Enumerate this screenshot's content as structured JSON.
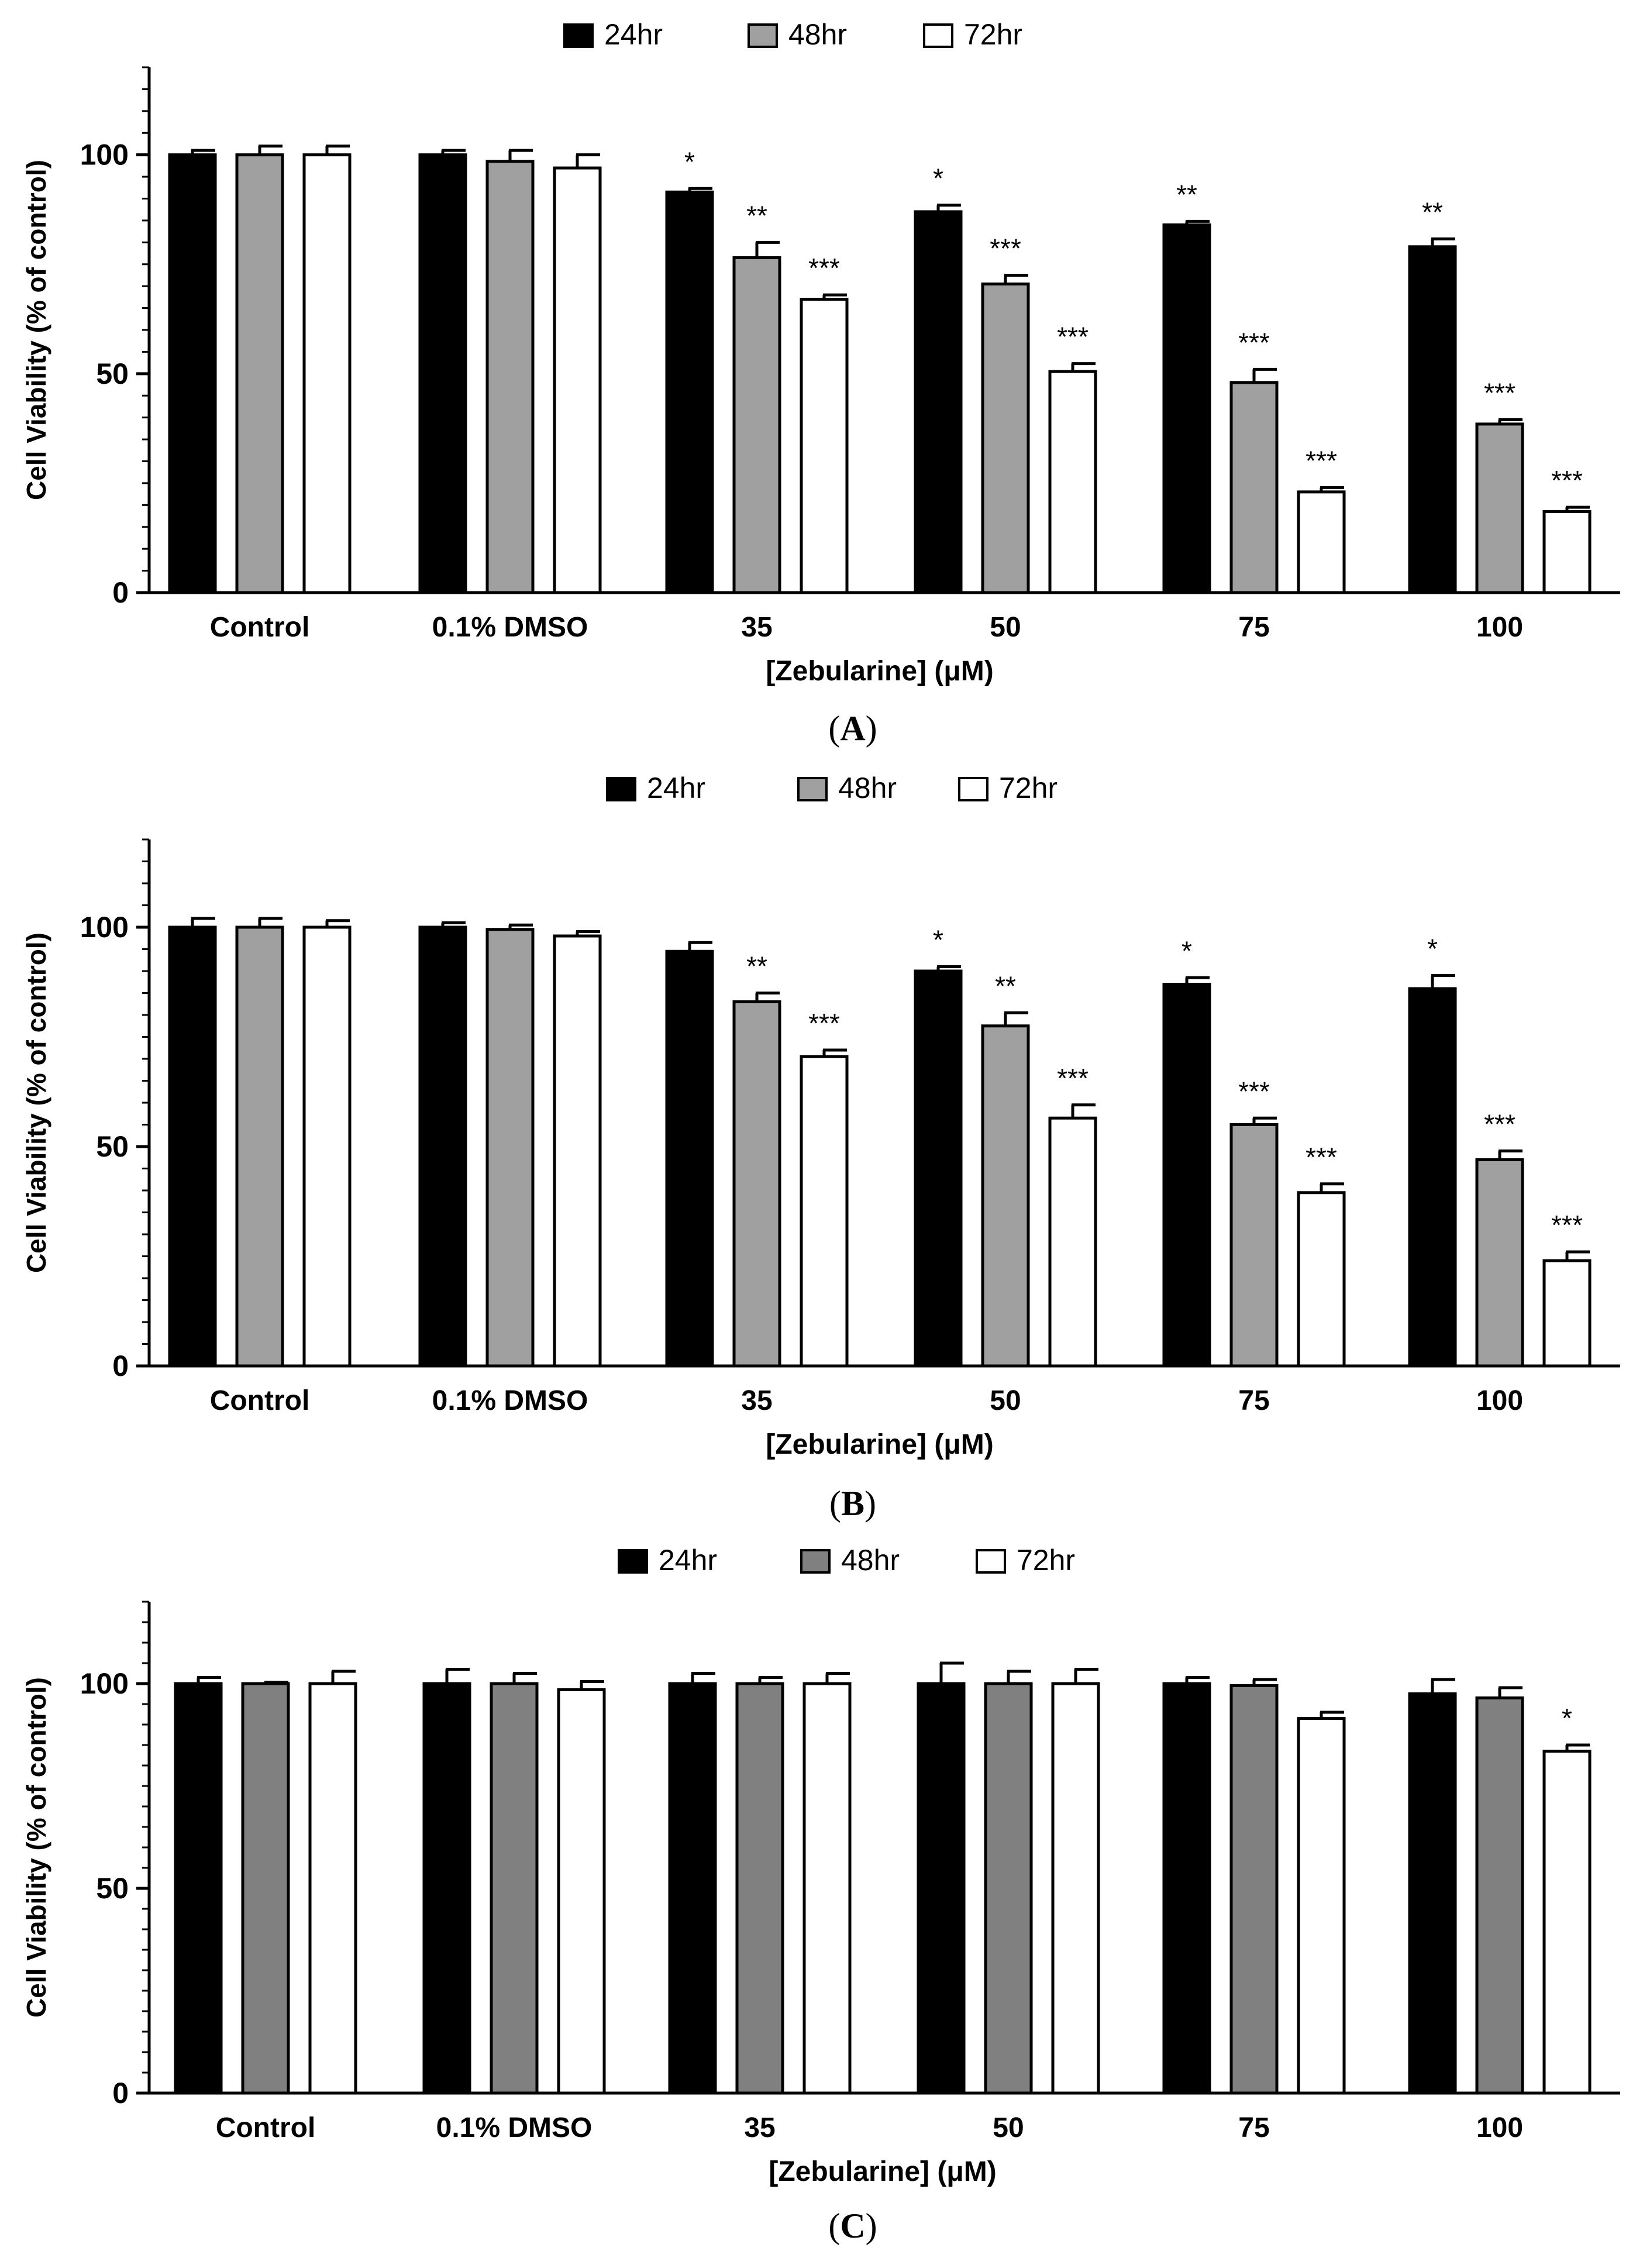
{
  "figure": {
    "panels": [
      "A",
      "B",
      "C"
    ]
  },
  "colors": {
    "series_24hr": "#000000",
    "series_48hr_A": "#a0a0a0",
    "series_48hr_B": "#a0a0a0",
    "series_48hr_C": "#808080",
    "series_72hr": "#ffffff",
    "axis": "#000000"
  },
  "chart_data": [
    {
      "type": "bar",
      "panel_caption": "A",
      "caption_prefix": "(",
      "caption_suffix": ")",
      "categories": [
        "Control",
        "0.1% DMSO",
        "35",
        "50",
        "75",
        "100"
      ],
      "series": [
        {
          "name": "24hr",
          "values": [
            100,
            100,
            91.5,
            87,
            84,
            79
          ],
          "errors": [
            1,
            1,
            0.8,
            1.5,
            0.8,
            1.8
          ],
          "significance": [
            "",
            "",
            "*",
            "*",
            "**",
            "**"
          ]
        },
        {
          "name": "48hr",
          "values": [
            100,
            98.5,
            76.5,
            70.5,
            48,
            38.5
          ],
          "errors": [
            2,
            2.5,
            3.5,
            2,
            3,
            1
          ],
          "significance": [
            "",
            "",
            "**",
            "***",
            "***",
            "***"
          ]
        },
        {
          "name": "72hr",
          "values": [
            100,
            97,
            67,
            50.5,
            23,
            18.5
          ],
          "errors": [
            2,
            3,
            1,
            1.8,
            1,
            1
          ],
          "significance": [
            "",
            "",
            "***",
            "***",
            "***",
            "***"
          ]
        }
      ],
      "xlabel": "[Zebularine] (μM)",
      "ylabel": "Cell Viability (% of control)",
      "ylim": [
        0,
        120
      ],
      "yticks": [
        0,
        50,
        100
      ],
      "grid": false,
      "legend": "top-center"
    },
    {
      "type": "bar",
      "panel_caption": "B",
      "caption_prefix": "(",
      "caption_suffix": ")",
      "categories": [
        "Control",
        "0.1% DMSO",
        "35",
        "50",
        "75",
        "100"
      ],
      "series": [
        {
          "name": "24hr",
          "values": [
            100,
            100,
            94.5,
            90,
            87,
            86
          ],
          "errors": [
            2,
            1,
            2,
            1,
            1.5,
            3
          ],
          "significance": [
            "",
            "",
            "",
            "*",
            "*",
            "*"
          ]
        },
        {
          "name": "48hr",
          "values": [
            100,
            99.5,
            83,
            77.5,
            55,
            47
          ],
          "errors": [
            2,
            1,
            2,
            3,
            1.5,
            2
          ],
          "significance": [
            "",
            "",
            "**",
            "**",
            "***",
            "***"
          ]
        },
        {
          "name": "72hr",
          "values": [
            100,
            98,
            70.5,
            56.5,
            39.5,
            24
          ],
          "errors": [
            1.5,
            1,
            1.5,
            3,
            2,
            2
          ],
          "significance": [
            "",
            "",
            "***",
            "***",
            "***",
            "***"
          ]
        }
      ],
      "xlabel": "[Zebularine] (μM)",
      "ylabel": "Cell Viability (% of control)",
      "ylim": [
        0,
        120
      ],
      "yticks": [
        0,
        50,
        100
      ],
      "grid": false,
      "legend": "top-center"
    },
    {
      "type": "bar",
      "panel_caption": "C",
      "caption_prefix": "(",
      "caption_suffix": ")",
      "categories": [
        "Control",
        "0.1% DMSO",
        "35",
        "50",
        "75",
        "100"
      ],
      "series": [
        {
          "name": "24hr",
          "values": [
            100,
            100,
            100,
            100,
            100,
            97.5
          ],
          "errors": [
            1.5,
            3.5,
            2.5,
            5,
            1.5,
            3.5
          ],
          "significance": [
            "",
            "",
            "",
            "",
            "",
            ""
          ]
        },
        {
          "name": "48hr",
          "values": [
            100,
            100,
            100,
            100,
            99.5,
            96.5
          ],
          "errors": [
            0.3,
            2.5,
            1.5,
            3,
            1.5,
            2.5
          ],
          "significance": [
            "",
            "",
            "",
            "",
            "",
            ""
          ]
        },
        {
          "name": "72hr",
          "values": [
            100,
            98.5,
            100,
            100,
            91.5,
            83.5
          ],
          "errors": [
            3,
            2,
            2.5,
            3.5,
            1.5,
            1.5
          ],
          "significance": [
            "",
            "",
            "",
            "",
            "",
            "*"
          ]
        }
      ],
      "xlabel": "[Zebularine] (μM)",
      "ylabel": "Cell Viability (% of control)",
      "ylim": [
        0,
        120
      ],
      "yticks": [
        0,
        50,
        100
      ],
      "grid": false,
      "legend": "top-center"
    }
  ]
}
